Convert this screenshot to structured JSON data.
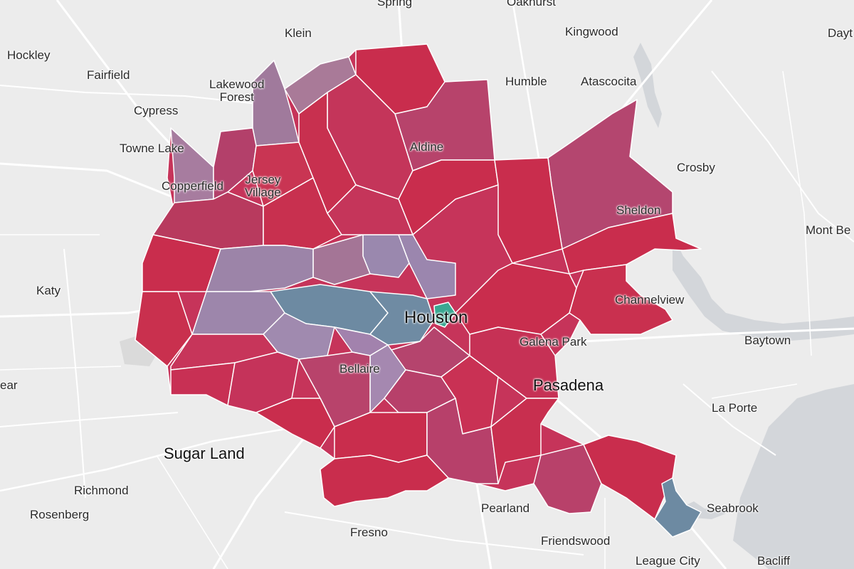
{
  "map": {
    "colors": {
      "base": "#ececec",
      "water": "#d3d6da",
      "roads": "#ffffff",
      "red": "#c92d4d",
      "red_purple": "#b8416a",
      "purple": "#a57494",
      "lavender": "#9a88ae",
      "steel_blue": "#6d8aa2",
      "teal": "#3aa892"
    },
    "labels": {
      "spring": "Spring",
      "oakhurst": "Oakhurst",
      "klein": "Klein",
      "kingwood": "Kingwood",
      "dayton": "Dayt",
      "hockley": "Hockley",
      "fairfield": "Fairfield",
      "lakewood_forest": "Lakewood\nForest",
      "humble": "Humble",
      "atascocita": "Atascocita",
      "cypress": "Cypress",
      "towne_lake": "Towne Lake",
      "aldine": "Aldine",
      "crosby": "Crosby",
      "copperfield": "Copperfield",
      "jersey_village": "Jersey\nVillage",
      "sheldon": "Sheldon",
      "mont_belvieu": "Mont Be",
      "katy": "Katy",
      "channelview": "Channelview",
      "houston": "Houston",
      "galena_park": "Galena Park",
      "baytown": "Baytown",
      "brookshire": "ear",
      "bellaire": "Bellaire",
      "pasadena": "Pasadena",
      "la_porte": "La Porte",
      "sugar_land": "Sugar Land",
      "richmond": "Richmond",
      "rosenberg": "Rosenberg",
      "pearland": "Pearland",
      "seabrook": "Seabrook",
      "fresno": "Fresno",
      "friendswood": "Friendswood",
      "league_city": "League City",
      "bacliff": "Bacliff"
    }
  }
}
